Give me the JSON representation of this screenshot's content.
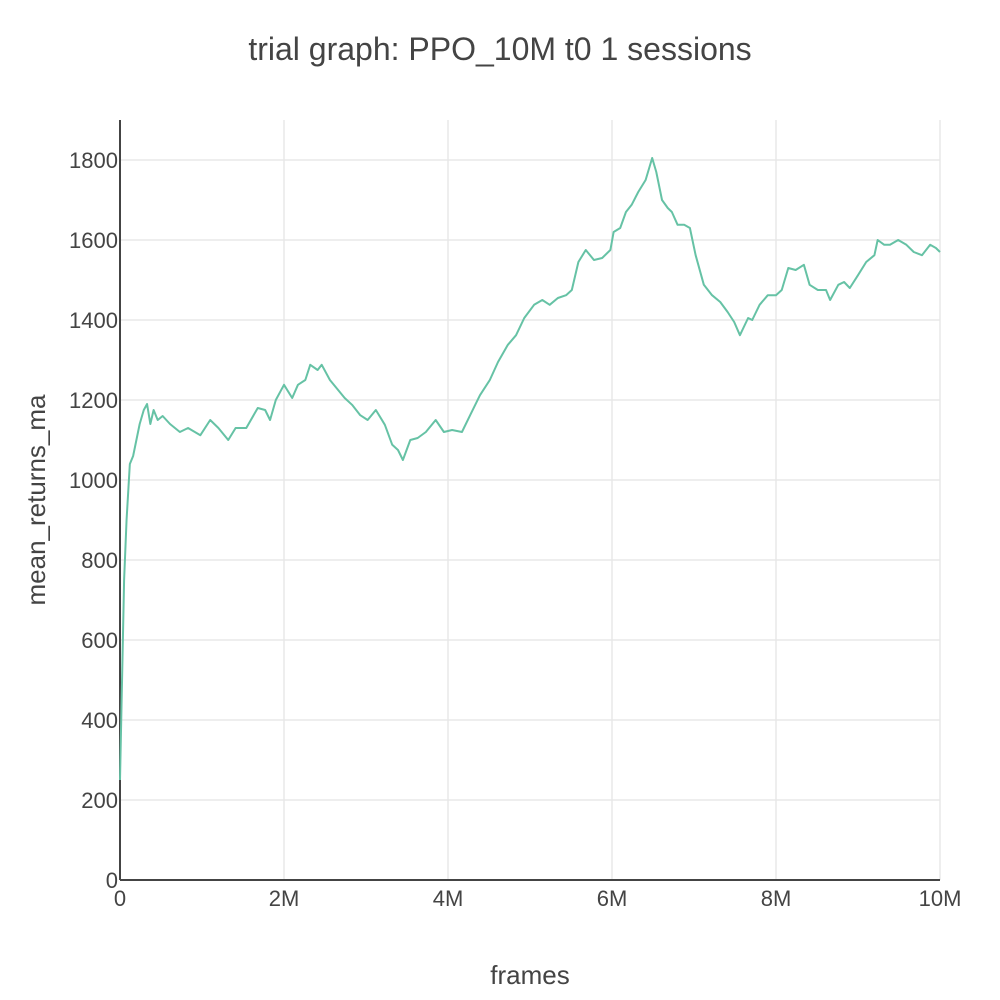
{
  "chart_data": {
    "type": "line",
    "title": "trial graph: PPO_10M t0 1 sessions",
    "x_label": "frames",
    "y_label": "mean_returns_ma",
    "xlim": [
      0,
      10000000
    ],
    "xticks": [
      0,
      {
        "value": 2000000,
        "label": "2M"
      },
      {
        "value": 4000000,
        "label": "4M"
      },
      {
        "value": 6000000,
        "label": "6M"
      },
      {
        "value": 8000000,
        "label": "8M"
      },
      {
        "value": 10000000,
        "label": "10M"
      }
    ],
    "ylim": [
      0,
      1900
    ],
    "yticks": [
      0,
      200,
      400,
      600,
      800,
      1000,
      1200,
      1400,
      1600,
      1800
    ],
    "grid": true,
    "x": [
      0,
      20000,
      50000,
      80000,
      120000,
      160000,
      200000,
      240000,
      290000,
      330000,
      370000,
      410000,
      460000,
      520000,
      610000,
      730000,
      830000,
      980000,
      1100000,
      1200000,
      1320000,
      1410000,
      1540000,
      1680000,
      1770000,
      1830000,
      1900000,
      2000000,
      2100000,
      2170000,
      2260000,
      2320000,
      2410000,
      2460000,
      2560000,
      2660000,
      2740000,
      2830000,
      2930000,
      3020000,
      3120000,
      3230000,
      3320000,
      3390000,
      3450000,
      3540000,
      3630000,
      3730000,
      3850000,
      3950000,
      4050000,
      4170000,
      4270000,
      4390000,
      4510000,
      4610000,
      4730000,
      4830000,
      4930000,
      5050000,
      5150000,
      5240000,
      5340000,
      5440000,
      5510000,
      5590000,
      5680000,
      5780000,
      5880000,
      5980000,
      6020000,
      6100000,
      6170000,
      6240000,
      6320000,
      6410000,
      6490000,
      6540000,
      6610000,
      6680000,
      6730000,
      6800000,
      6880000,
      6950000,
      7020000,
      7120000,
      7220000,
      7320000,
      7410000,
      7490000,
      7560000,
      7660000,
      7710000,
      7800000,
      7900000,
      8000000,
      8070000,
      8150000,
      8240000,
      8340000,
      8410000,
      8510000,
      8610000,
      8660000,
      8760000,
      8830000,
      8900000,
      9000000,
      9100000,
      9200000,
      9240000,
      9320000,
      9390000,
      9490000,
      9590000,
      9680000,
      9780000,
      9880000,
      9950000,
      10000000
    ],
    "series": [
      {
        "color": "#66c2a5",
        "values": [
          250,
          450,
          750,
          900,
          1040,
          1060,
          1100,
          1140,
          1175,
          1190,
          1140,
          1175,
          1150,
          1160,
          1140,
          1120,
          1130,
          1112,
          1150,
          1130,
          1100,
          1130,
          1130,
          1180,
          1175,
          1150,
          1200,
          1238,
          1205,
          1238,
          1250,
          1288,
          1275,
          1288,
          1250,
          1225,
          1205,
          1188,
          1162,
          1150,
          1175,
          1138,
          1088,
          1075,
          1050,
          1100,
          1105,
          1120,
          1150,
          1120,
          1125,
          1120,
          1162,
          1212,
          1250,
          1295,
          1338,
          1362,
          1405,
          1438,
          1450,
          1438,
          1455,
          1462,
          1475,
          1545,
          1575,
          1550,
          1555,
          1575,
          1620,
          1630,
          1670,
          1688,
          1720,
          1750,
          1805,
          1770,
          1700,
          1680,
          1670,
          1638,
          1638,
          1630,
          1562,
          1488,
          1462,
          1445,
          1420,
          1395,
          1362,
          1405,
          1400,
          1438,
          1462,
          1462,
          1475,
          1530,
          1525,
          1538,
          1488,
          1475,
          1475,
          1450,
          1488,
          1495,
          1480,
          1512,
          1545,
          1562,
          1600,
          1588,
          1588,
          1600,
          1588,
          1570,
          1562,
          1588,
          1580,
          1570
        ]
      }
    ]
  }
}
